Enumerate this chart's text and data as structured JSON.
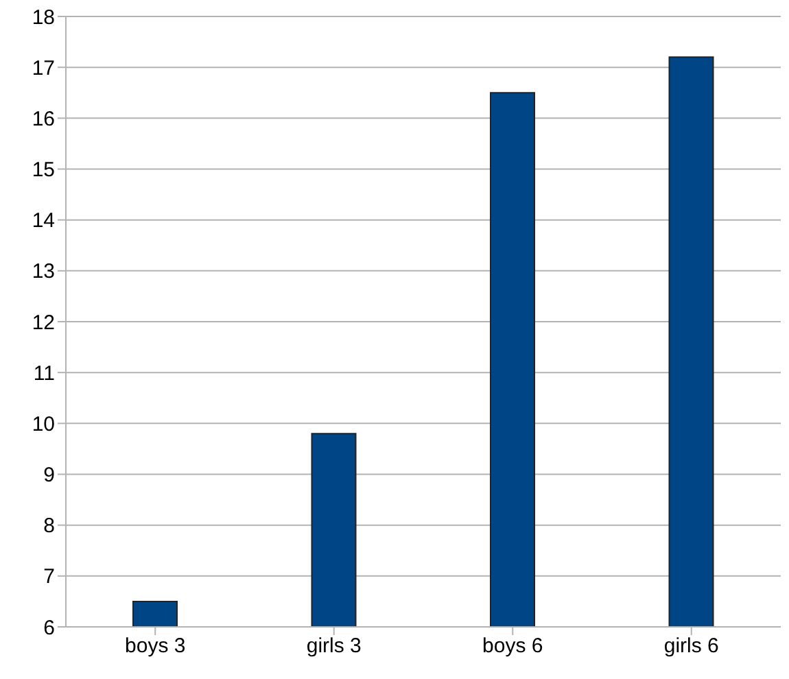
{
  "chart_data": {
    "type": "bar",
    "categories": [
      "boys 3",
      "girls 3",
      "boys 6",
      "girls 6"
    ],
    "values": [
      6.5,
      9.8,
      16.5,
      17.2
    ],
    "color": "#004586",
    "ylim": [
      6,
      18
    ],
    "yticks": [
      6,
      7,
      8,
      9,
      10,
      11,
      12,
      13,
      14,
      15,
      16,
      17,
      18
    ],
    "grid": "y"
  }
}
